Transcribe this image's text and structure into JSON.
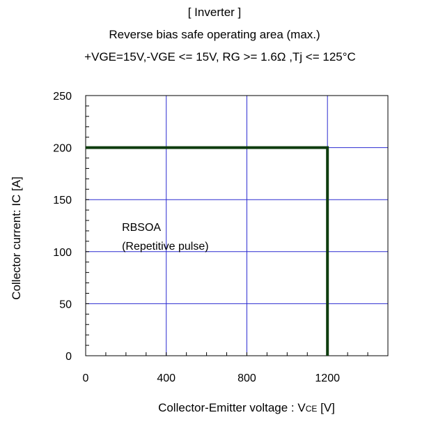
{
  "chart_data": {
    "type": "line",
    "title": "[ Inverter ]",
    "subtitle": "Reverse bias safe operating area (max.)",
    "conditions": "+VGE=15V,-VGE <= 15V, RG >= 1.6Ω ,Tj <= 125°C",
    "xlabel": "Collector-Emitter voltage : VCE [V]",
    "xlabel_main": "Collector-Emitter voltage : V",
    "xlabel_sub": "CE",
    "xlabel_unit": " [V]",
    "ylabel": "Collector current: IC [A]",
    "xlim": [
      0,
      1500
    ],
    "ylim": [
      0,
      250
    ],
    "x_ticks": [
      0,
      400,
      800,
      1200
    ],
    "y_ticks": [
      0,
      50,
      100,
      150,
      200,
      250
    ],
    "x_minor_step": 100,
    "y_minor_step": 10,
    "grid": true,
    "series": [
      {
        "x": [
          0,
          1200,
          1200
        ],
        "y": [
          200,
          200,
          0
        ]
      }
    ],
    "annotation": [
      "RBSOA",
      "(Repetitive pulse)"
    ],
    "annotation_anchor": {
      "x": 180,
      "y": 120
    },
    "colors": {
      "grid": "#2a2ad0",
      "line": "#0f3d0f",
      "axis": "#000000"
    }
  }
}
